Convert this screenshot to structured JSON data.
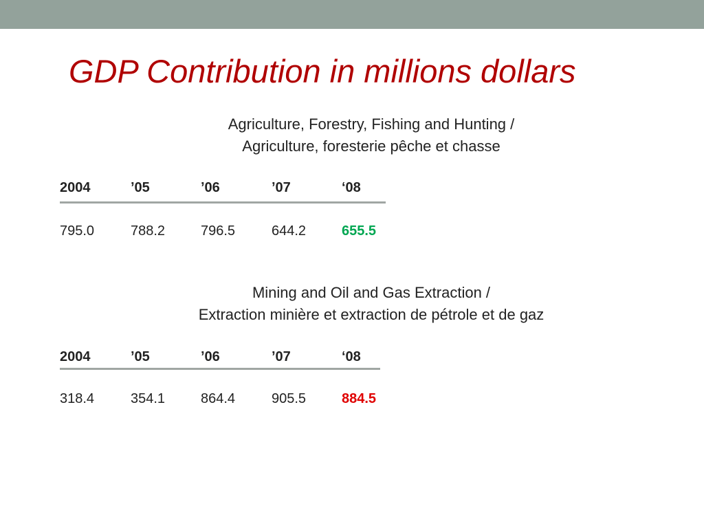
{
  "slide": {
    "title": "GDP Contribution in millions dollars",
    "colors": {
      "top_bar": "#93a29b",
      "title": "#b00000",
      "rule": "#a0a6a3",
      "highlight_up": "#00a651",
      "highlight_down": "#e00000"
    }
  },
  "tables": [
    {
      "caption_line1": "Agriculture, Forestry, Fishing and Hunting /",
      "caption_line2": "Agriculture, foresterie pêche et chasse",
      "headers": [
        "2004",
        "’05",
        "’06",
        "’07",
        "‘08"
      ],
      "values": [
        "795.0",
        "788.2",
        "796.5",
        "644.2",
        "655.5"
      ]
    },
    {
      "caption_line1": "Mining and Oil and Gas Extraction /",
      "caption_line2": "Extraction minière et extraction de pétrole et de gaz",
      "headers": [
        "2004",
        "’05",
        "’06",
        "’07",
        "‘08"
      ],
      "values": [
        "318.4",
        "354.1",
        "864.4",
        "905.5",
        "884.5"
      ]
    }
  ]
}
